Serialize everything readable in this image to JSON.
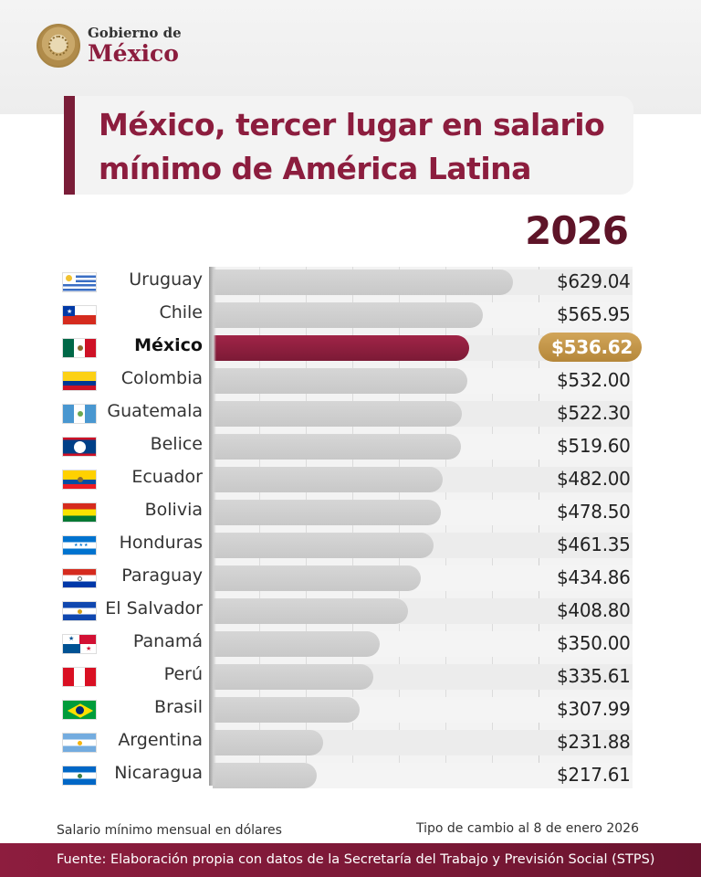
{
  "header": {
    "logo_line1": "Gobierno de",
    "logo_line2": "México",
    "title_line1": "México, tercer lugar en salario",
    "title_line2": "mínimo de América Latina",
    "year": "2026"
  },
  "colors": {
    "accent": "#8c1d3e",
    "highlight_pill": "#c9994a",
    "bar_default": "#cfcfcf"
  },
  "chart_data": {
    "type": "bar",
    "orientation": "horizontal",
    "title": "México, tercer lugar en salario mínimo de América Latina",
    "xlabel": "Salario mínimo mensual en dólares",
    "highlight": "México",
    "categories": [
      "Uruguay",
      "Chile",
      "México",
      "Colombia",
      "Guatemala",
      "Belice",
      "Ecuador",
      "Bolivia",
      "Honduras",
      "Paraguay",
      "El Salvador",
      "Panamá",
      "Perú",
      "Brasil",
      "Argentina",
      "Nicaragua"
    ],
    "values": [
      629.04,
      565.95,
      536.62,
      532.0,
      522.3,
      519.6,
      482.0,
      478.5,
      461.35,
      434.86,
      408.8,
      350.0,
      335.61,
      307.99,
      231.88,
      217.61
    ],
    "labels": [
      "$629.04",
      "$565.95",
      "$536.62",
      "$532.00",
      "$522.30",
      "$519.60",
      "$482.00",
      "$478.50",
      "$461.35",
      "$434.86",
      "$408.80",
      "$350.00",
      "$335.61",
      "$307.99",
      "$231.88",
      "$217.61"
    ],
    "flags": [
      "uruguay-flag",
      "chile-flag",
      "mexico-flag",
      "colombia-flag",
      "guatemala-flag",
      "belize-flag",
      "ecuador-flag",
      "bolivia-flag",
      "honduras-flag",
      "paraguay-flag",
      "el-salvador-flag",
      "panama-flag",
      "peru-flag",
      "brazil-flag",
      "argentina-flag",
      "nicaragua-flag"
    ],
    "xlim": [
      0,
      650
    ],
    "grid": true
  },
  "notes": {
    "left": "Salario mínimo mensual en dólares",
    "right": "Tipo de cambio al 8 de enero 2026"
  },
  "footer": {
    "source": "Fuente: Elaboración propia con datos de la Secretaría del Trabajo y Previsión Social (STPS)"
  }
}
